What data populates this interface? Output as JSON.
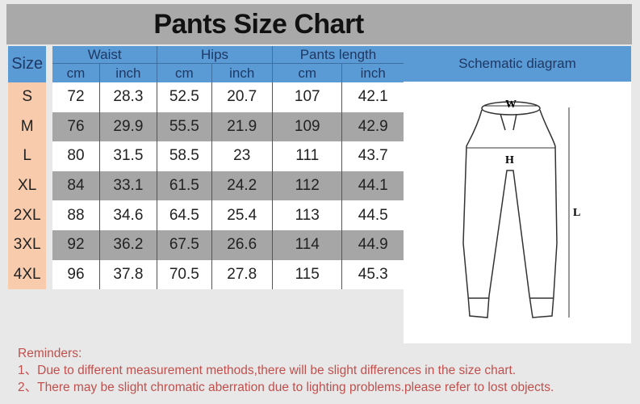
{
  "title": "Pants Size Chart",
  "header": {
    "size": "Size",
    "waist": "Waist",
    "hips": "Hips",
    "length": "Pants length",
    "cm": "cm",
    "inch": "inch",
    "schematic": "Schematic diagram"
  },
  "rows": [
    [
      "S",
      "72",
      "28.3",
      "52.5",
      "20.7",
      "107",
      "42.1"
    ],
    [
      "M",
      "76",
      "29.9",
      "55.5",
      "21.9",
      "109",
      "42.9"
    ],
    [
      "L",
      "80",
      "31.5",
      "58.5",
      "23",
      "111",
      "43.7"
    ],
    [
      "XL",
      "84",
      "33.1",
      "61.5",
      "24.2",
      "112",
      "44.1"
    ],
    [
      "2XL",
      "88",
      "34.6",
      "64.5",
      "25.4",
      "113",
      "44.5"
    ],
    [
      "3XL",
      "92",
      "36.2",
      "67.5",
      "26.6",
      "114",
      "44.9"
    ],
    [
      "4XL",
      "96",
      "37.8",
      "70.5",
      "27.8",
      "115",
      "45.3"
    ]
  ],
  "diagram": {
    "w": "W",
    "h": "H",
    "l": "L"
  },
  "reminders": {
    "heading": "Reminders:",
    "items": [
      "1、Due to different measurement methods,there will be slight differences in the size chart.",
      "2、There may be slight chromatic aberration due to lighting problems.please refer to lost objects."
    ]
  },
  "colors": {
    "header": "#5b9bd5",
    "size_cell": "#f8cbad",
    "title_band": "#a9a9a9",
    "reminder_text": "#c0504d"
  }
}
